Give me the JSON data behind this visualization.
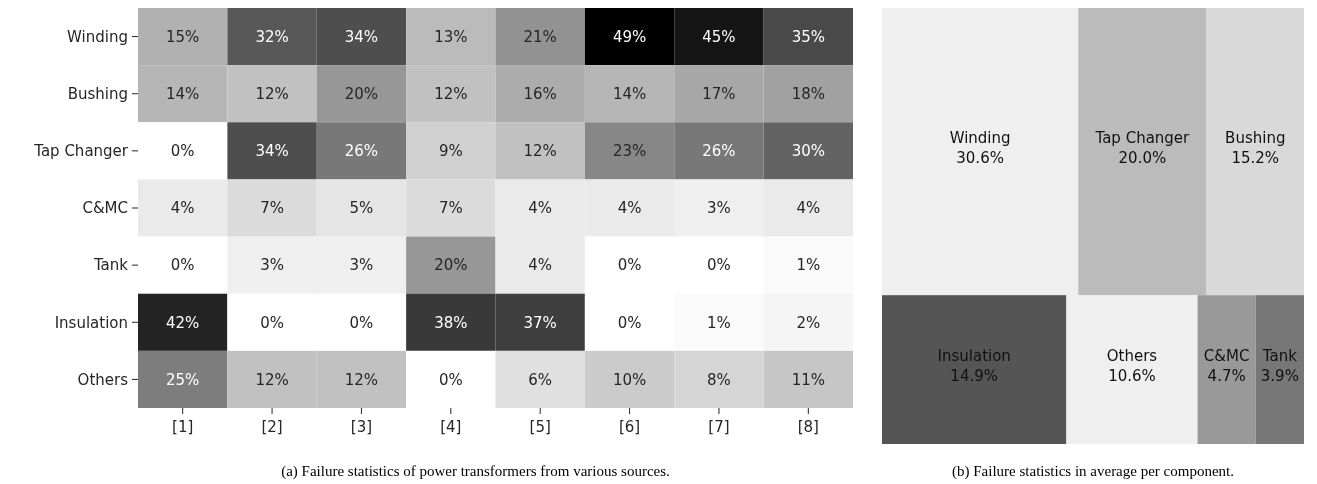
{
  "chart_data": [
    {
      "type": "heatmap",
      "categories": [
        "[1]",
        "[2]",
        "[3]",
        "[4]",
        "[5]",
        "[6]",
        "[7]",
        "[8]"
      ],
      "y_categories": [
        "Winding",
        "Bushing",
        "Tap Changer",
        "C&MC",
        "Tank",
        "Insulation",
        "Others"
      ],
      "cells": [
        [
          15,
          32,
          34,
          13,
          21,
          49,
          45,
          35
        ],
        [
          14,
          12,
          20,
          12,
          16,
          14,
          17,
          18
        ],
        [
          0,
          34,
          26,
          9,
          12,
          23,
          26,
          30
        ],
        [
          4,
          7,
          5,
          7,
          4,
          4,
          3,
          4
        ],
        [
          0,
          3,
          3,
          20,
          4,
          0,
          0,
          1
        ],
        [
          42,
          0,
          0,
          38,
          37,
          0,
          1,
          2
        ],
        [
          25,
          12,
          12,
          0,
          6,
          10,
          8,
          11
        ]
      ],
      "cell_labels": [
        [
          "15%",
          "32%",
          "34%",
          "13%",
          "21%",
          "49%",
          "45%",
          "35%"
        ],
        [
          "14%",
          "12%",
          "20%",
          "12%",
          "16%",
          "14%",
          "17%",
          "18%"
        ],
        [
          "0%",
          "34%",
          "26%",
          "9%",
          "12%",
          "23%",
          "26%",
          "30%"
        ],
        [
          "4%",
          "7%",
          "5%",
          "7%",
          "4%",
          "4%",
          "3%",
          "4%"
        ],
        [
          "0%",
          "3%",
          "3%",
          "20%",
          "4%",
          "0%",
          "0%",
          "1%"
        ],
        [
          "42%",
          "0%",
          "0%",
          "38%",
          "37%",
          "0%",
          "1%",
          "2%"
        ],
        [
          "25%",
          "12%",
          "12%",
          "0%",
          "6%",
          "10%",
          "8%",
          "11%"
        ]
      ],
      "annotations": [
        "(a)  Failure statistics of power transformers from various sources."
      ]
    },
    {
      "type": "other",
      "categories": [
        "Winding",
        "Tap Changer",
        "Bushing",
        "Insulation",
        "Others",
        "C&MC",
        "Tank"
      ],
      "values": [
        30.6,
        20.0,
        15.2,
        14.9,
        10.6,
        4.7,
        3.9
      ],
      "value_labels": [
        "30.6%",
        "20.0%",
        "15.2%",
        "14.9%",
        "10.6%",
        "4.7%",
        "3.9%"
      ],
      "colors": [
        "#efefef",
        "#bbbbbb",
        "#d9d9d9",
        "#555555",
        "#efefef",
        "#999999",
        "#777777"
      ],
      "annotations": [
        "(b)  Failure statistics in average per component."
      ]
    }
  ]
}
